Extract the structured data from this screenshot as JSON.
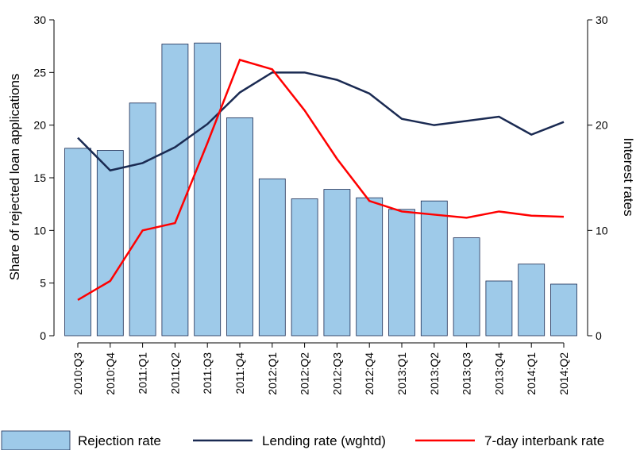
{
  "chart_data": {
    "type": "bar",
    "categories": [
      "2010:Q3",
      "2010:Q4",
      "2011:Q1",
      "2011:Q2",
      "2011:Q3",
      "2011:Q4",
      "2012:Q1",
      "2012:Q2",
      "2012:Q3",
      "2012:Q4",
      "2013:Q1",
      "2013:Q2",
      "2013:Q3",
      "2013:Q4",
      "2014:Q1",
      "2014:Q2"
    ],
    "y_label": "Share of rejected loan applications",
    "y2_label": "Interest rates",
    "ylim": [
      0,
      30
    ],
    "yticks": [
      0,
      5,
      10,
      15,
      20,
      25,
      30
    ],
    "y2lim": [
      0,
      30
    ],
    "y2ticks": [
      0,
      10,
      20,
      30
    ],
    "series": [
      {
        "name": "Rejection rate",
        "type": "bar",
        "color": "#9ecae9",
        "values": [
          17.8,
          17.6,
          22.1,
          27.7,
          27.8,
          20.7,
          14.9,
          13.0,
          13.9,
          13.1,
          12.0,
          12.8,
          9.3,
          5.2,
          6.8,
          4.9
        ]
      },
      {
        "name": "Lending rate (wghtd)",
        "type": "line",
        "axis": "y2",
        "color": "#1a2a52",
        "values": [
          18.8,
          15.7,
          16.4,
          17.9,
          20.1,
          23.1,
          25.0,
          25.0,
          24.3,
          23.0,
          20.6,
          20.0,
          20.4,
          20.8,
          19.1,
          20.3
        ]
      },
      {
        "name": "7-day interbank rate",
        "type": "line",
        "axis": "y2",
        "color": "#ff0000",
        "values": [
          3.4,
          5.2,
          10.0,
          10.7,
          18.3,
          26.2,
          25.3,
          21.4,
          16.8,
          12.8,
          11.8,
          11.5,
          11.2,
          11.8,
          11.4,
          11.3
        ]
      }
    ]
  }
}
